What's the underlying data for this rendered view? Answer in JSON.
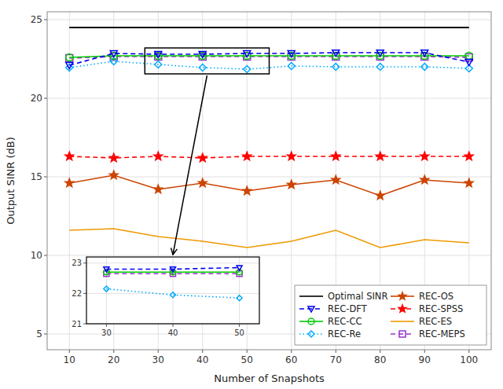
{
  "chart_data": [
    {
      "type": "line",
      "x": [
        10,
        20,
        30,
        40,
        50,
        60,
        70,
        80,
        90,
        100
      ],
      "xlabel": "Number of Snapshots",
      "ylabel": "Output SINR (dB)",
      "xlim": [
        5,
        105
      ],
      "ylim": [
        4,
        25.5
      ],
      "xticks": [
        10,
        20,
        30,
        40,
        50,
        60,
        70,
        80,
        90,
        100
      ],
      "yticks": [
        5,
        10,
        15,
        20,
        25
      ],
      "grid": true,
      "legend": "lower right",
      "highlight": {
        "x": [
          27,
          55
        ],
        "y": [
          21.55,
          23.2
        ]
      },
      "series": [
        {
          "name": "Optimal SINR",
          "color": "#000000",
          "line_style": "solid",
          "marker": "none",
          "values": [
            24.5,
            24.5,
            24.5,
            24.5,
            24.5,
            24.5,
            24.5,
            24.5,
            24.5,
            24.5
          ]
        },
        {
          "name": "REC-DFT",
          "color": "#0000EE",
          "line_style": "dashed",
          "marker": "triangle_down",
          "values": [
            22.1,
            22.85,
            22.8,
            22.8,
            22.85,
            22.85,
            22.9,
            22.9,
            22.9,
            22.3
          ]
        },
        {
          "name": "REC-CC",
          "color": "#00CC00",
          "line_style": "solid",
          "marker": "circle",
          "values": [
            22.6,
            22.7,
            22.7,
            22.7,
            22.7,
            22.7,
            22.7,
            22.7,
            22.7,
            22.7
          ]
        },
        {
          "name": "REC-Re",
          "color": "#00AAFF",
          "line_style": "dotted",
          "marker": "diamond",
          "values": [
            21.95,
            22.35,
            22.15,
            21.95,
            21.85,
            22.05,
            22.0,
            22.0,
            22.0,
            21.9
          ]
        },
        {
          "name": "REC-OS",
          "color": "#CC4400",
          "line_style": "solid",
          "marker": "star",
          "values": [
            14.6,
            15.1,
            14.2,
            14.6,
            14.1,
            14.5,
            14.8,
            13.8,
            14.8,
            14.6
          ]
        },
        {
          "name": "REC-SPSS",
          "color": "#FF0000",
          "line_style": "dashed",
          "marker": "star",
          "values": [
            16.3,
            16.2,
            16.3,
            16.2,
            16.3,
            16.3,
            16.3,
            16.3,
            16.3,
            16.3
          ]
        },
        {
          "name": "REC-ES",
          "color": "#EE9900",
          "line_style": "solid",
          "marker": "none",
          "values": [
            11.6,
            11.7,
            11.2,
            10.9,
            10.5,
            10.9,
            11.6,
            10.5,
            11.0,
            10.8
          ]
        },
        {
          "name": "REC-MEPS",
          "color": "#9933CC",
          "line_style": "dashed",
          "marker": "square",
          "values": [
            22.55,
            22.65,
            22.65,
            22.65,
            22.65,
            22.65,
            22.65,
            22.65,
            22.65,
            22.6
          ]
        }
      ]
    },
    {
      "type": "line",
      "x": [
        30,
        40,
        50
      ],
      "xlim": [
        27,
        53
      ],
      "ylim": [
        21,
        23.2
      ],
      "xticks": [
        30,
        40,
        50
      ],
      "yticks": [
        21,
        22,
        23
      ],
      "grid": true,
      "series": [
        {
          "color": "#0000EE",
          "line_style": "dashed",
          "marker": "triangle_down",
          "values": [
            22.8,
            22.8,
            22.85
          ]
        },
        {
          "color": "#00CC00",
          "line_style": "solid",
          "marker": "circle",
          "values": [
            22.7,
            22.7,
            22.7
          ]
        },
        {
          "color": "#00AAFF",
          "line_style": "dotted",
          "marker": "diamond",
          "values": [
            22.15,
            21.95,
            21.85
          ]
        },
        {
          "color": "#9933CC",
          "line_style": "dashed",
          "marker": "square",
          "values": [
            22.65,
            22.65,
            22.65
          ]
        }
      ]
    }
  ]
}
